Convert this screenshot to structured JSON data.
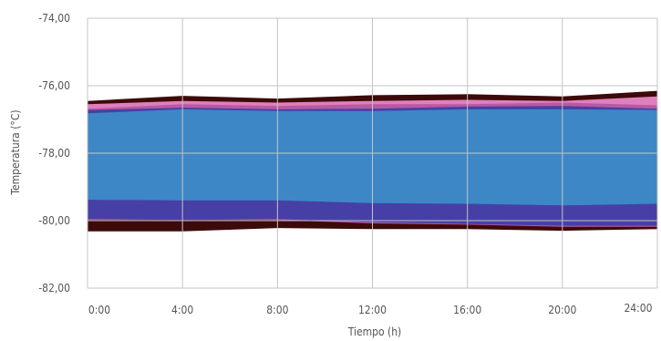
{
  "chart_data": {
    "type": "area",
    "xlabel": "Tiempo (h)",
    "ylabel": "Temperatura (°C)",
    "x": [
      0,
      4,
      8,
      12,
      16,
      20,
      24
    ],
    "xtick_labels": [
      "0:00",
      "4:00",
      "8:00",
      "12:00",
      "16:00",
      "20:00",
      "24:00"
    ],
    "ylim": [
      -82,
      -74
    ],
    "ytick_values": [
      -74,
      -76,
      -78,
      -80,
      -82
    ],
    "ytick_labels": [
      "-74,00",
      "-76,00",
      "-78,00",
      "-80,00",
      "-82,00"
    ],
    "grid": true,
    "bands": [
      {
        "color": "#3d0a0a",
        "upper": [
          -76.45,
          -76.3,
          -76.38,
          -76.28,
          -76.25,
          -76.32,
          -76.15
        ],
        "lower": [
          -80.32,
          -80.32,
          -80.22,
          -80.25,
          -80.25,
          -80.3,
          -80.25
        ]
      },
      {
        "color": "#e07fbd",
        "upper": [
          -76.55,
          -76.45,
          -76.5,
          -76.45,
          -76.42,
          -76.45,
          -76.32
        ],
        "lower": [
          -79.95,
          -79.95,
          -79.95,
          -80.05,
          -80.1,
          -80.15,
          -80.15
        ]
      },
      {
        "color": "#b85aa3",
        "upper": [
          -76.68,
          -76.55,
          -76.6,
          -76.55,
          -76.55,
          -76.5,
          -76.58
        ],
        "lower": [
          -79.98,
          -79.98,
          -79.98,
          -80.08,
          -80.12,
          -80.18,
          -80.18
        ]
      },
      {
        "color": "#4640a6",
        "upper": [
          -76.72,
          -76.65,
          -76.7,
          -76.68,
          -76.62,
          -76.6,
          -76.68
        ],
        "lower": [
          -79.95,
          -79.98,
          -79.95,
          -80.05,
          -80.1,
          -80.15,
          -80.15
        ]
      },
      {
        "color": "#3d87c6",
        "upper": [
          -76.82,
          -76.7,
          -76.75,
          -76.75,
          -76.7,
          -76.7,
          -76.72
        ],
        "lower": [
          -79.38,
          -79.4,
          -79.4,
          -79.48,
          -79.5,
          -79.55,
          -79.5
        ]
      }
    ]
  }
}
